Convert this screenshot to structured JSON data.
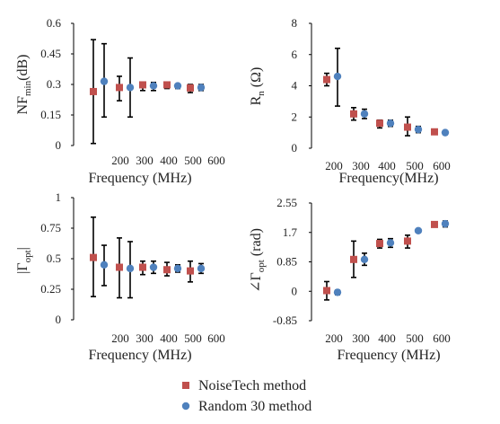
{
  "colors": {
    "noisetech": "#c0504d",
    "random30": "#4f81bd",
    "errorbar": "#000000"
  },
  "legend": {
    "items": [
      {
        "label": "NoiseTech method",
        "color": "#c0504d",
        "marker": "square"
      },
      {
        "label": "Random 30 method",
        "color": "#4f81bd",
        "marker": "circle"
      }
    ],
    "placement": "bottom-center"
  },
  "chart_data": [
    {
      "id": "nf",
      "type": "scatter",
      "xlabel": "Frequency (MHz)",
      "ylabel": {
        "main": "NF",
        "sub": "min",
        "tail": "(dB)"
      },
      "categories": [
        "200",
        "300",
        "400",
        "500",
        "600"
      ],
      "yticks": [
        "0",
        "0.15",
        "0.3",
        "0.45",
        "0.6"
      ],
      "ylim": [
        0,
        0.6
      ],
      "grid": false,
      "series": [
        {
          "name": "NoiseTech method",
          "values": [
            0.265,
            0.285,
            0.298,
            0.298,
            0.283
          ],
          "err_low": [
            0.01,
            0.22,
            0.27,
            0.28,
            0.26
          ],
          "err_high": [
            0.52,
            0.34,
            0.31,
            0.31,
            0.3
          ]
        },
        {
          "name": "Random 30 method",
          "values": [
            0.315,
            0.285,
            0.293,
            0.293,
            0.285
          ],
          "err_low": [
            0.14,
            0.14,
            0.27,
            0.28,
            0.27
          ],
          "err_high": [
            0.5,
            0.43,
            0.31,
            0.3,
            0.3
          ]
        }
      ]
    },
    {
      "id": "rn",
      "type": "scatter",
      "xlabel": "Frequency(MHz)",
      "ylabel": {
        "main": "R",
        "sub": "n",
        "tail": " (Ω)"
      },
      "categories": [
        "200",
        "300",
        "400",
        "500",
        "600"
      ],
      "yticks": [
        "0",
        "2",
        "4",
        "6",
        "8"
      ],
      "ylim": [
        0,
        8
      ],
      "grid": false,
      "series": [
        {
          "name": "NoiseTech method",
          "values": [
            4.4,
            2.2,
            1.6,
            1.35,
            1.05
          ],
          "err_low": [
            4.0,
            1.8,
            1.3,
            0.8,
            0.95
          ],
          "err_high": [
            4.8,
            2.6,
            1.8,
            2.0,
            1.15
          ]
        },
        {
          "name": "Random 30 method",
          "values": [
            4.6,
            2.2,
            1.6,
            1.2,
            1.0
          ],
          "err_low": [
            2.7,
            1.9,
            1.4,
            1.0,
            0.9
          ],
          "err_high": [
            6.4,
            2.5,
            1.8,
            1.4,
            1.1
          ]
        }
      ]
    },
    {
      "id": "gamma-mag",
      "type": "scatter",
      "xlabel": "Frequency (MHz)",
      "ylabel": {
        "main": "|Γ",
        "sub": "opt",
        "tail": "|"
      },
      "categories": [
        "200",
        "300",
        "400",
        "500",
        "600"
      ],
      "yticks": [
        "0",
        "0.25",
        "0.5",
        "0.75",
        "1"
      ],
      "ylim": [
        0,
        1
      ],
      "grid": false,
      "series": [
        {
          "name": "NoiseTech method",
          "values": [
            0.51,
            0.43,
            0.43,
            0.41,
            0.4
          ],
          "err_low": [
            0.19,
            0.18,
            0.37,
            0.36,
            0.31
          ],
          "err_high": [
            0.84,
            0.67,
            0.48,
            0.47,
            0.48
          ]
        },
        {
          "name": "Random 30 method",
          "values": [
            0.45,
            0.42,
            0.43,
            0.42,
            0.42
          ],
          "err_low": [
            0.28,
            0.18,
            0.38,
            0.39,
            0.38
          ],
          "err_high": [
            0.61,
            0.64,
            0.48,
            0.45,
            0.46
          ]
        }
      ]
    },
    {
      "id": "gamma-angle",
      "type": "scatter",
      "xlabel": "Frequency (MHz)",
      "ylabel": {
        "main": "∠Γ",
        "sub": "opt",
        "tail": " (rad)"
      },
      "categories": [
        "200",
        "300",
        "400",
        "500",
        "600"
      ],
      "yticks": [
        "-0.85",
        "0",
        "0.85",
        "1.7",
        "2.55"
      ],
      "ylim": [
        -0.85,
        2.55
      ],
      "grid": false,
      "series": [
        {
          "name": "NoiseTech method",
          "values": [
            0.02,
            0.92,
            1.38,
            1.45,
            1.93
          ],
          "err_low": [
            -0.25,
            0.4,
            1.25,
            1.25,
            1.86
          ],
          "err_high": [
            0.28,
            1.45,
            1.5,
            1.62,
            2.0
          ]
        },
        {
          "name": "Random 30 method",
          "values": [
            -0.03,
            0.92,
            1.4,
            1.75,
            1.95
          ],
          "err_low": [
            -0.1,
            0.75,
            1.27,
            1.7,
            1.86
          ],
          "err_high": [
            0.03,
            1.1,
            1.52,
            1.8,
            2.03
          ]
        }
      ]
    }
  ]
}
